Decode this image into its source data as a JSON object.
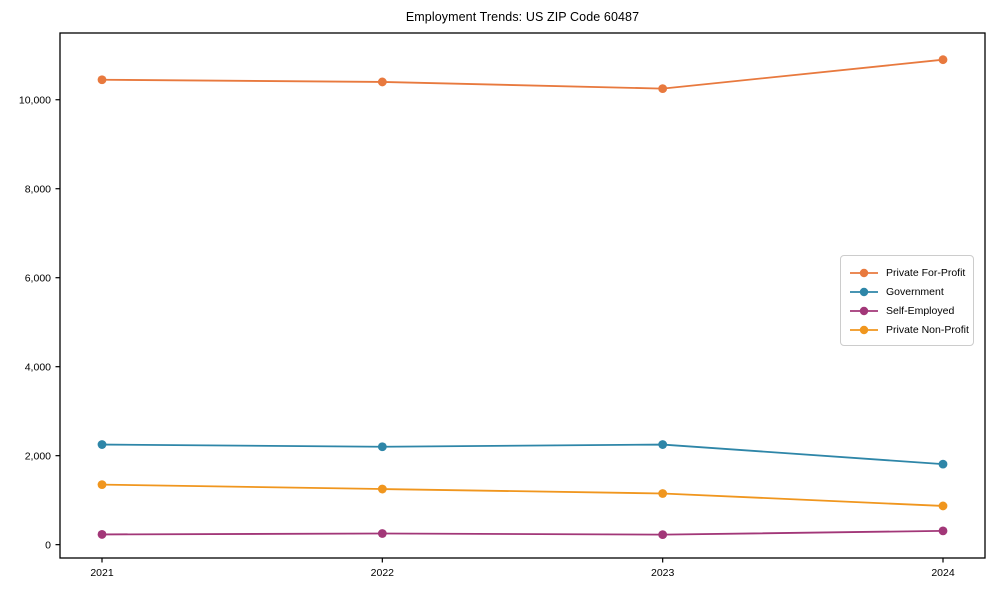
{
  "chart_data": {
    "type": "line",
    "title": "Employment Trends: US ZIP Code 60487",
    "categories": [
      "2021",
      "2022",
      "2023",
      "2024"
    ],
    "series": [
      {
        "name": "Private For-Profit",
        "color": "#E8793E",
        "values": [
          10450,
          10400,
          10250,
          10900
        ]
      },
      {
        "name": "Government",
        "color": "#2E86A8",
        "values": [
          2250,
          2200,
          2250,
          1810
        ]
      },
      {
        "name": "Self-Employed",
        "color": "#A23778",
        "values": [
          230,
          250,
          225,
          310
        ]
      },
      {
        "name": "Private Non-Profit",
        "color": "#F0961E",
        "values": [
          1350,
          1250,
          1150,
          870
        ]
      }
    ],
    "xlabel": "",
    "ylabel": "",
    "ylim": [
      -300,
      11500
    ],
    "y_ticks": [
      0,
      2000,
      4000,
      6000,
      8000,
      10000
    ],
    "y_tick_labels": [
      "0",
      "2,000",
      "4,000",
      "6,000",
      "8,000",
      "10,000"
    ],
    "grid": false,
    "marker": "circle",
    "legend_position": "center-right",
    "frame_color": "#000000"
  }
}
